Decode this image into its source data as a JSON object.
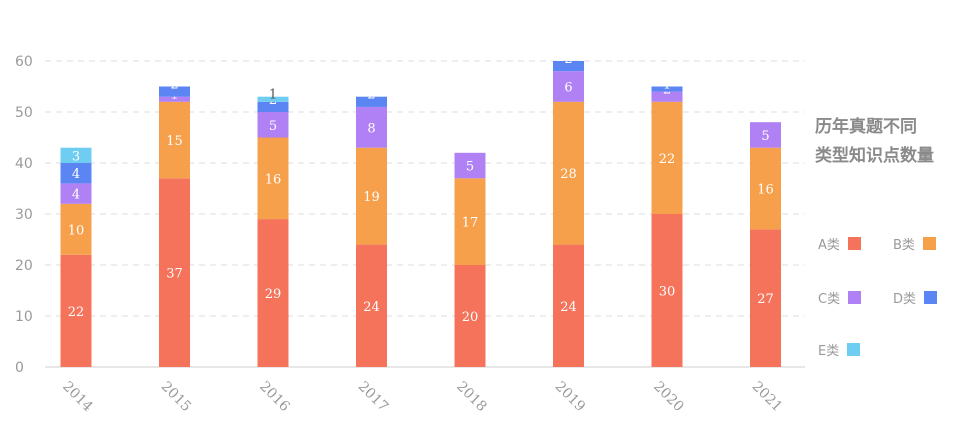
{
  "chart_data": {
    "type": "bar",
    "stacked": true,
    "title_lines": [
      "历年真题不同",
      "类型知识点数量"
    ],
    "categories": [
      "2014",
      "2015",
      "2016",
      "2017",
      "2018",
      "2019",
      "2020",
      "2021"
    ],
    "ylim": [
      0,
      60
    ],
    "yticks": [
      0,
      10,
      20,
      30,
      40,
      50,
      60
    ],
    "grid": true,
    "legend_position": "right",
    "series": [
      {
        "name": "A类",
        "color": "#f4735a",
        "values": [
          22,
          37,
          29,
          24,
          20,
          24,
          30,
          27
        ]
      },
      {
        "name": "B类",
        "color": "#f6a04c",
        "values": [
          10,
          15,
          16,
          19,
          17,
          28,
          22,
          16
        ]
      },
      {
        "name": "C类",
        "color": "#b080f5",
        "values": [
          4,
          1,
          5,
          8,
          5,
          6,
          2,
          5
        ]
      },
      {
        "name": "D类",
        "color": "#5a85f3",
        "values": [
          4,
          2,
          2,
          2,
          null,
          2,
          1,
          null
        ]
      },
      {
        "name": "E类",
        "color": "#6fcdf2",
        "values": [
          3,
          null,
          1,
          null,
          null,
          null,
          null,
          null
        ]
      }
    ]
  }
}
